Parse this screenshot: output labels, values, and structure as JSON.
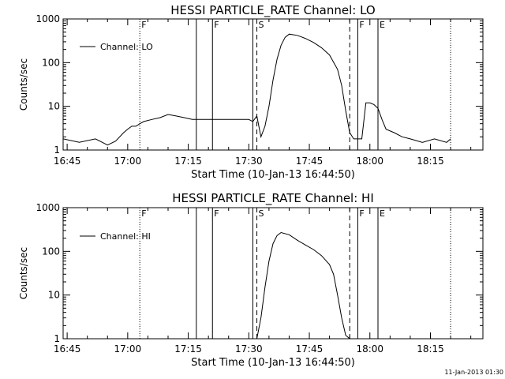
{
  "footer": {
    "timestamp": "11-Jan-2013 01:30"
  },
  "chart_data": [
    {
      "type": "line",
      "title": "HESSI PARTICLE_RATE Channel: LO",
      "xlabel": "Start Time (10-Jan-13 16:44:50)",
      "ylabel": "Counts/sec",
      "y_scale": "log",
      "xlim": [
        "16:44",
        "18:28"
      ],
      "ylim": [
        1,
        1000
      ],
      "x_ticks": [
        "16:45",
        "17:00",
        "17:15",
        "17:30",
        "17:45",
        "18:00",
        "18:15"
      ],
      "y_ticks": [
        "1",
        "10",
        "100",
        "1000"
      ],
      "legend": {
        "entries": [
          "Channel: LO"
        ],
        "position": "upper-left"
      },
      "series": [
        {
          "name": "Channel: LO",
          "x": [
            "16:44",
            "16:48",
            "16:52",
            "16:55",
            "16:57",
            "16:59",
            "17:00",
            "17:01",
            "17:02",
            "17:03",
            "17:04",
            "17:06",
            "17:08",
            "17:10",
            "17:12",
            "17:14",
            "17:16",
            "17:18",
            "17:20",
            "17:24",
            "17:28",
            "17:30",
            "17:31",
            "17:32",
            "17:33",
            "17:34",
            "17:35",
            "17:36",
            "17:37",
            "17:38",
            "17:39",
            "17:40",
            "17:42",
            "17:44",
            "17:46",
            "17:48",
            "17:50",
            "17:52",
            "17:53",
            "17:54",
            "17:55",
            "17:56",
            "17:57",
            "17:58",
            "17:59",
            "18:00",
            "18:01",
            "18:02",
            "18:03",
            "18:04",
            "18:06",
            "18:08",
            "18:10",
            "18:13",
            "18:16",
            "18:19",
            "18:20"
          ],
          "values": [
            1.8,
            1.5,
            1.8,
            1.3,
            1.6,
            2.5,
            3.0,
            3.5,
            3.5,
            4.0,
            4.5,
            5.0,
            5.5,
            6.5,
            6.0,
            5.5,
            5.0,
            5.0,
            5.0,
            5.0,
            5.0,
            5.0,
            4.5,
            6.0,
            2.0,
            3.5,
            10,
            40,
            120,
            250,
            380,
            450,
            420,
            360,
            290,
            220,
            150,
            70,
            30,
            8,
            2.5,
            1.8,
            1.8,
            1.8,
            12,
            12,
            11,
            9,
            5,
            3,
            2.5,
            2,
            1.8,
            1.5,
            1.8,
            1.5,
            1.8
          ]
        }
      ],
      "vertical_markers": [
        {
          "time": "17:03",
          "label": "F",
          "style": "dotted"
        },
        {
          "time": "17:17",
          "label": "",
          "style": "solid"
        },
        {
          "time": "17:21",
          "label": "F",
          "style": "solid"
        },
        {
          "time": "17:31",
          "label": "",
          "style": "solid"
        },
        {
          "time": "17:32",
          "label": "S",
          "style": "dashed"
        },
        {
          "time": "17:55",
          "label": "",
          "style": "dashed"
        },
        {
          "time": "17:57",
          "label": "F",
          "style": "solid"
        },
        {
          "time": "18:02",
          "label": "E",
          "style": "solid"
        },
        {
          "time": "18:20",
          "label": "",
          "style": "dotted"
        }
      ]
    },
    {
      "type": "line",
      "title": "HESSI PARTICLE_RATE Channel: HI",
      "xlabel": "Start Time (10-Jan-13 16:44:50)",
      "ylabel": "Counts/sec",
      "y_scale": "log",
      "xlim": [
        "16:44",
        "18:28"
      ],
      "ylim": [
        1,
        1000
      ],
      "x_ticks": [
        "16:45",
        "17:00",
        "17:15",
        "17:30",
        "17:45",
        "18:00",
        "18:15"
      ],
      "y_ticks": [
        "1",
        "10",
        "100",
        "1000"
      ],
      "legend": {
        "entries": [
          "Channel: HI"
        ],
        "position": "upper-left"
      },
      "series": [
        {
          "name": "Channel: HI",
          "x": [
            "17:32",
            "17:33",
            "17:34",
            "17:35",
            "17:36",
            "17:37",
            "17:38",
            "17:40",
            "17:42",
            "17:44",
            "17:46",
            "17:48",
            "17:50",
            "17:51",
            "17:52",
            "17:53",
            "17:54",
            "17:55"
          ],
          "values": [
            1,
            3,
            15,
            60,
            150,
            230,
            270,
            240,
            180,
            140,
            110,
            80,
            50,
            30,
            10,
            3,
            1.2,
            1
          ]
        }
      ],
      "vertical_markers": [
        {
          "time": "17:03",
          "label": "F",
          "style": "dotted"
        },
        {
          "time": "17:17",
          "label": "",
          "style": "solid"
        },
        {
          "time": "17:21",
          "label": "F",
          "style": "solid"
        },
        {
          "time": "17:31",
          "label": "",
          "style": "solid"
        },
        {
          "time": "17:32",
          "label": "S",
          "style": "dashed"
        },
        {
          "time": "17:55",
          "label": "",
          "style": "dashed"
        },
        {
          "time": "17:57",
          "label": "F",
          "style": "solid"
        },
        {
          "time": "18:02",
          "label": "E",
          "style": "solid"
        },
        {
          "time": "18:20",
          "label": "",
          "style": "dotted"
        }
      ]
    }
  ]
}
